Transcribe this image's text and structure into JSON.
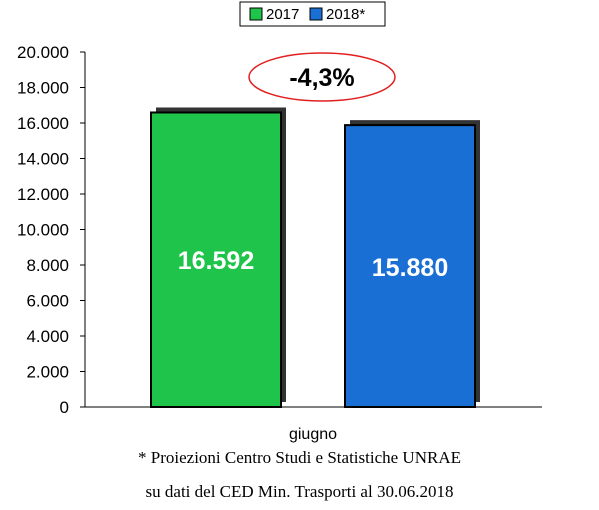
{
  "chart_data": {
    "type": "bar",
    "categories": [
      "giugno"
    ],
    "series": [
      {
        "name": "2017",
        "values": [
          16592
        ],
        "color": "#1fc44a"
      },
      {
        "name": "2018*",
        "values": [
          15880
        ],
        "color": "#1a6fd4"
      }
    ],
    "value_labels": [
      "16.592",
      "15.880"
    ],
    "ylim": [
      0,
      20000
    ],
    "yticks": [
      "0",
      "2.000",
      "4.000",
      "6.000",
      "8.000",
      "10.000",
      "12.000",
      "14.000",
      "16.000",
      "18.000",
      "20.000"
    ],
    "legend": "top-center",
    "grid": false,
    "annotation": "-4,3%",
    "annotation_color": "#e02020"
  },
  "footnotes": [
    "* Proiezioni Centro Studi e Statistiche UNRAE",
    "su dati del CED Min. Trasporti al 30.06.2018"
  ]
}
